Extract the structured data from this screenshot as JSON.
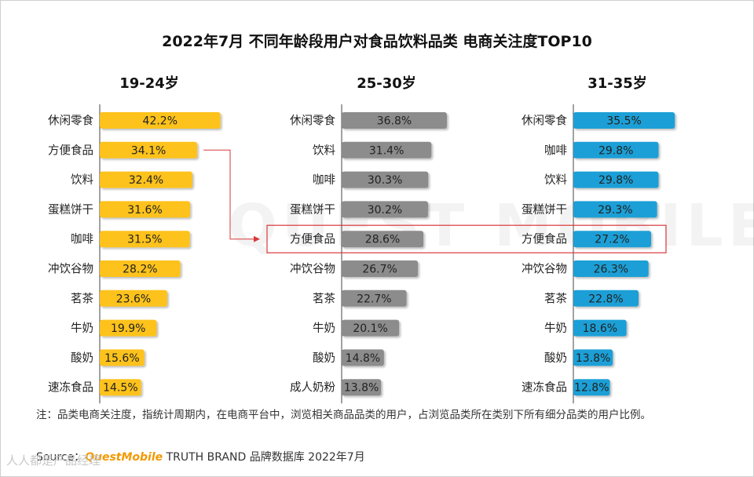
{
  "title": "2022年7月 不同年龄段用户对食品饮料品类 电商关注度TOP10",
  "note": "注：品类电商关注度，指统计周期内，在电商平台中，浏览相关商品品类的用户，占浏览品类所在类别下所有细分品类的用户比例。",
  "source": {
    "prefix": "Source：",
    "brand": "QuestMobile",
    "rest": " TRUTH BRAND 品牌数据库 2022年7月"
  },
  "watermark": "QUEST MOBILE",
  "watermark_logo": "人人都是产品经理",
  "colors": {
    "panel1": "#fdc21a",
    "panel2": "#8c8c8c",
    "panel3": "#1e9fd6",
    "highlight": "#d9383a",
    "axis": "#444444"
  },
  "chart_data": [
    {
      "type": "bar",
      "orientation": "horizontal",
      "title": "19-24岁",
      "categories": [
        "休闲零食",
        "方便食品",
        "饮料",
        "蛋糕饼干",
        "咖啡",
        "冲饮谷物",
        "茗茶",
        "牛奶",
        "酸奶",
        "速冻食品"
      ],
      "values": [
        42.2,
        34.1,
        32.4,
        31.6,
        31.5,
        28.2,
        23.6,
        19.9,
        15.6,
        14.5
      ],
      "labels": [
        "42.2%",
        "34.1%",
        "32.4%",
        "31.6%",
        "31.5%",
        "28.2%",
        "23.6%",
        "19.9%",
        "15.6%",
        "14.5%"
      ],
      "unit": "%"
    },
    {
      "type": "bar",
      "orientation": "horizontal",
      "title": "25-30岁",
      "categories": [
        "休闲零食",
        "饮料",
        "咖啡",
        "蛋糕饼干",
        "方便食品",
        "冲饮谷物",
        "茗茶",
        "牛奶",
        "酸奶",
        "成人奶粉"
      ],
      "values": [
        36.8,
        31.4,
        30.3,
        30.2,
        28.6,
        26.7,
        22.7,
        20.1,
        14.8,
        13.8
      ],
      "labels": [
        "36.8%",
        "31.4%",
        "30.3%",
        "30.2%",
        "28.6%",
        "26.7%",
        "22.7%",
        "20.1%",
        "14.8%",
        "13.8%"
      ],
      "unit": "%",
      "highlight_category": "方便食品"
    },
    {
      "type": "bar",
      "orientation": "horizontal",
      "title": "31-35岁",
      "categories": [
        "休闲零食",
        "咖啡",
        "饮料",
        "蛋糕饼干",
        "方便食品",
        "冲饮谷物",
        "茗茶",
        "牛奶",
        "酸奶",
        "速冻食品"
      ],
      "values": [
        35.5,
        29.8,
        29.8,
        29.3,
        27.2,
        26.3,
        22.8,
        18.6,
        13.8,
        12.8
      ],
      "labels": [
        "35.5%",
        "29.8%",
        "29.8%",
        "29.3%",
        "27.2%",
        "26.3%",
        "22.8%",
        "18.6%",
        "13.8%",
        "12.8%"
      ],
      "unit": "%",
      "highlight_category": "方便食品"
    }
  ]
}
